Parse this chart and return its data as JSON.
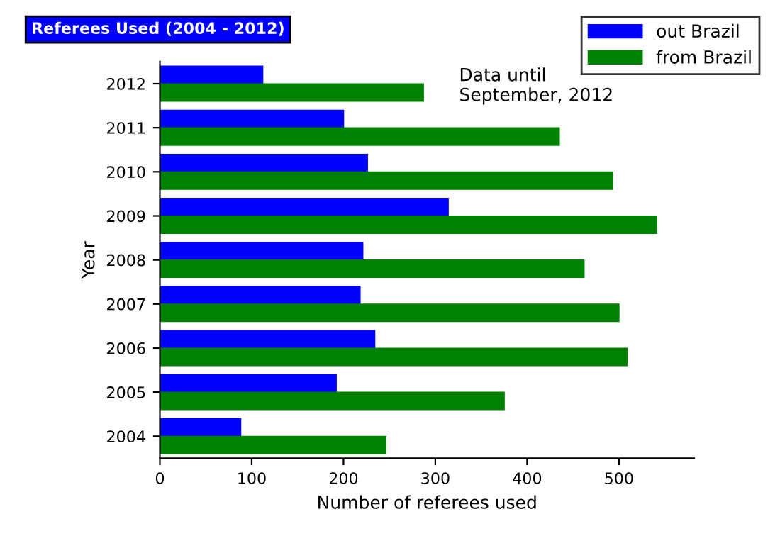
{
  "chart_data": {
    "type": "bar",
    "orientation": "horizontal",
    "title": "Referees Used (2004 - 2012)",
    "xlabel": "Number of referees used",
    "ylabel": "Year",
    "categories": [
      "2012",
      "2011",
      "2010",
      "2009",
      "2008",
      "2007",
      "2006",
      "2005",
      "2004"
    ],
    "series": [
      {
        "name": "out Brazil",
        "color": "#0000ff",
        "values": [
          112,
          200,
          226,
          314,
          221,
          218,
          234,
          192,
          88
        ]
      },
      {
        "name": "from Brazil",
        "color": "#008000",
        "values": [
          287,
          435,
          493,
          541,
          462,
          500,
          509,
          375,
          246
        ]
      }
    ],
    "xlim": [
      0,
      582
    ],
    "xticks": [
      0,
      100,
      200,
      300,
      400,
      500
    ],
    "annotations": [
      "Data until\nSeptember, 2012"
    ],
    "legend": "top right",
    "grid": false
  }
}
